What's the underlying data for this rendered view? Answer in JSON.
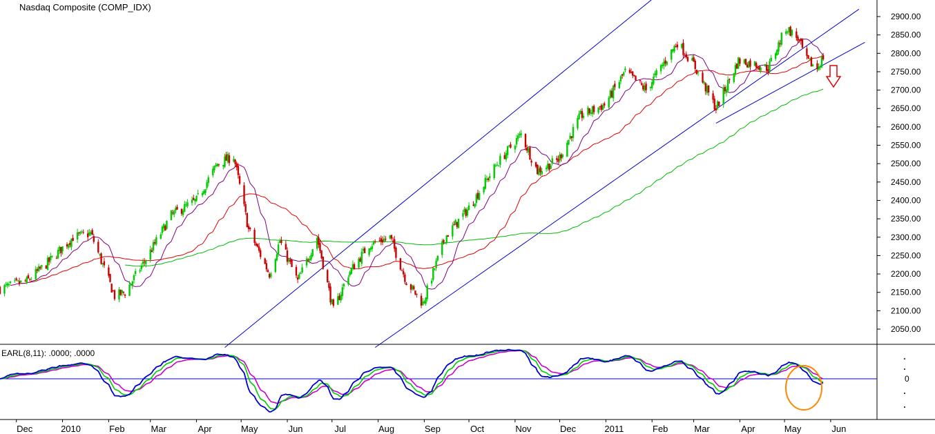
{
  "chart_data": {
    "type": "candlestick",
    "title": "Nasdaq Composite (COMP_IDX)",
    "ylim": [
      2000,
      2920
    ],
    "yticks": [
      "2900.00",
      "2850.00",
      "2800.00",
      "2750.00",
      "2700.00",
      "2650.00",
      "2600.00",
      "2550.00",
      "2500.00",
      "2450.00",
      "2400.00",
      "2350.00",
      "2300.00",
      "2250.00",
      "2200.00",
      "2150.00",
      "2100.00",
      "2050.00"
    ],
    "x_labels": [
      "Dec",
      "2010",
      "Feb",
      "Mar",
      "Apr",
      "May",
      "Jun",
      "Jul",
      "Aug",
      "Sep",
      "Oct",
      "Nov",
      "Dec",
      "2011",
      "Feb",
      "Mar",
      "Apr",
      "May",
      "Jun"
    ],
    "x_start": "2009-11-20",
    "x_end": "2011-06-08",
    "close_anchors": [
      [
        "2009-11-20",
        2160
      ],
      [
        "2009-12-08",
        2180
      ],
      [
        "2009-12-22",
        2230
      ],
      [
        "2010-01-08",
        2300
      ],
      [
        "2010-01-20",
        2310
      ],
      [
        "2010-02-05",
        2140
      ],
      [
        "2010-02-12",
        2150
      ],
      [
        "2010-02-26",
        2240
      ],
      [
        "2010-03-15",
        2360
      ],
      [
        "2010-04-01",
        2400
      ],
      [
        "2010-04-15",
        2500
      ],
      [
        "2010-04-26",
        2520
      ],
      [
        "2010-05-06",
        2320
      ],
      [
        "2010-05-20",
        2200
      ],
      [
        "2010-05-27",
        2290
      ],
      [
        "2010-06-08",
        2180
      ],
      [
        "2010-06-21",
        2300
      ],
      [
        "2010-07-02",
        2100
      ],
      [
        "2010-07-12",
        2200
      ],
      [
        "2010-07-26",
        2280
      ],
      [
        "2010-08-09",
        2300
      ],
      [
        "2010-08-20",
        2180
      ],
      [
        "2010-08-31",
        2120
      ],
      [
        "2010-09-15",
        2300
      ],
      [
        "2010-10-01",
        2380
      ],
      [
        "2010-10-20",
        2500
      ],
      [
        "2010-11-05",
        2580
      ],
      [
        "2010-11-16",
        2480
      ],
      [
        "2010-11-30",
        2510
      ],
      [
        "2010-12-15",
        2630
      ],
      [
        "2010-12-31",
        2660
      ],
      [
        "2011-01-14",
        2750
      ],
      [
        "2011-01-28",
        2700
      ],
      [
        "2011-02-18",
        2830
      ],
      [
        "2011-03-01",
        2770
      ],
      [
        "2011-03-16",
        2650
      ],
      [
        "2011-03-31",
        2780
      ],
      [
        "2011-04-12",
        2770
      ],
      [
        "2011-04-20",
        2760
      ],
      [
        "2011-05-02",
        2870
      ],
      [
        "2011-05-10",
        2840
      ],
      [
        "2011-05-16",
        2780
      ],
      [
        "2011-05-23",
        2760
      ],
      [
        "2011-05-27",
        2790
      ]
    ],
    "series": [
      {
        "name": "",
        "color": "#00cc00",
        "role": "up candles"
      },
      {
        "name": "",
        "color": "#cc0000",
        "role": "down candles"
      },
      {
        "name": "",
        "color": "#800080",
        "role": "short moving average"
      },
      {
        "name": "",
        "color": "#dd0000",
        "role": "medium moving average"
      },
      {
        "name": "",
        "color": "#00bb00",
        "role": "long moving average"
      }
    ],
    "trendlines": [
      {
        "from": [
          "2010-04-20",
          2000
        ],
        "to": [
          "2011-02-05",
          2960
        ],
        "color": "#0000cc"
      },
      {
        "from": [
          "2010-07-30",
          2000
        ],
        "to": [
          "2011-06-20",
          2920
        ],
        "color": "#0000cc"
      },
      {
        "from": [
          "2011-03-16",
          2610
        ],
        "to": [
          "2011-06-24",
          2830
        ],
        "color": "#0000cc"
      }
    ],
    "annotation_arrow": {
      "direction": "down",
      "color": "#dd0000"
    },
    "indicator": {
      "title": "EARL(8,11): .0000; .0000",
      "zero_label": "0",
      "ylim": [
        -1.1,
        1.1
      ],
      "lines": [
        {
          "name": "",
          "color": "#0000cc"
        },
        {
          "name": "",
          "color": "#00cc00"
        },
        {
          "name": "",
          "color": "#cc00cc"
        }
      ],
      "highlight_circle": {
        "color": "#ff8800"
      }
    },
    "grid": false
  },
  "colors": {
    "background": "#ffffff",
    "axis": "#000000"
  }
}
